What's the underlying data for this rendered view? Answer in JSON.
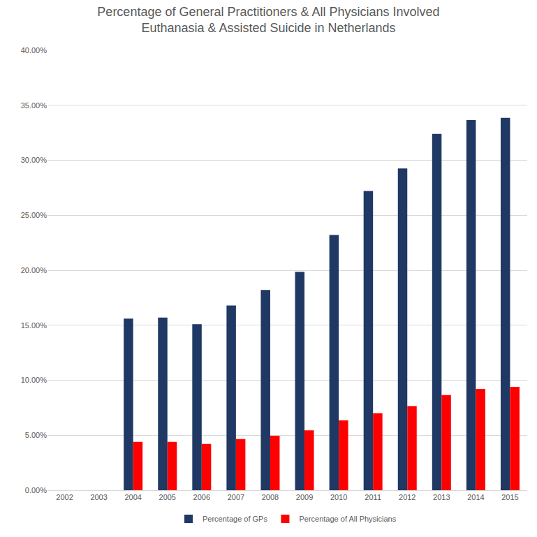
{
  "chart_data": {
    "type": "bar",
    "title": "Percentage of General Practitioners & All Physicians Involved\nEuthanasia & Assisted Suicide in Netherlands",
    "categories": [
      "2002",
      "2003",
      "2004",
      "2005",
      "2006",
      "2007",
      "2008",
      "2009",
      "2010",
      "2011",
      "2012",
      "2013",
      "2014",
      "2015"
    ],
    "series": [
      {
        "name": "Percentage of GPs",
        "color": "#1f3864",
        "values": [
          null,
          null,
          15.6,
          15.7,
          15.1,
          16.8,
          18.2,
          19.85,
          23.2,
          27.2,
          29.25,
          32.4,
          33.65,
          33.85
        ]
      },
      {
        "name": "Percentage of All Physicians",
        "color": "#ff0000",
        "values": [
          null,
          null,
          4.4,
          4.4,
          4.2,
          4.65,
          4.95,
          5.45,
          6.35,
          7.0,
          7.65,
          8.65,
          9.2,
          9.4
        ]
      }
    ],
    "ylim": [
      0,
      40
    ],
    "yticks": [
      {
        "value": 0,
        "label": "0.00%"
      },
      {
        "value": 5,
        "label": "5.00%"
      },
      {
        "value": 10,
        "label": "10.00%"
      },
      {
        "value": 15,
        "label": "15.00%"
      },
      {
        "value": 20,
        "label": "20.00%"
      },
      {
        "value": 25,
        "label": "25.00%"
      },
      {
        "value": 30,
        "label": "30.00%"
      },
      {
        "value": 35,
        "label": "35.00%"
      },
      {
        "value": 40,
        "label": "40.00%"
      }
    ],
    "grid": true,
    "legend": "bottom"
  }
}
